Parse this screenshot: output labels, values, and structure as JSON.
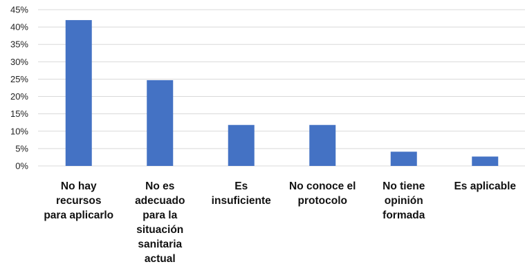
{
  "chart_data": {
    "type": "bar",
    "title": "",
    "xlabel": "",
    "ylabel": "",
    "ylim": [
      0,
      45
    ],
    "ytick_step": 5,
    "ytick_format": "percent",
    "grid": true,
    "bar_color": "#4472C4",
    "grid_color": "#d9d9d9",
    "categories": [
      [
        "No hay",
        "recursos",
        "para aplicarlo"
      ],
      [
        "No es",
        "adecuado",
        "para la",
        "situación",
        "sanitaria",
        "actual"
      ],
      [
        "Es",
        "insuficiente"
      ],
      [
        "No conoce el",
        "protocolo"
      ],
      [
        "No tiene",
        "opinión",
        "formada"
      ],
      [
        "Es aplicable"
      ]
    ],
    "values": [
      42,
      24.7,
      11.8,
      11.8,
      4.1,
      2.7
    ]
  }
}
